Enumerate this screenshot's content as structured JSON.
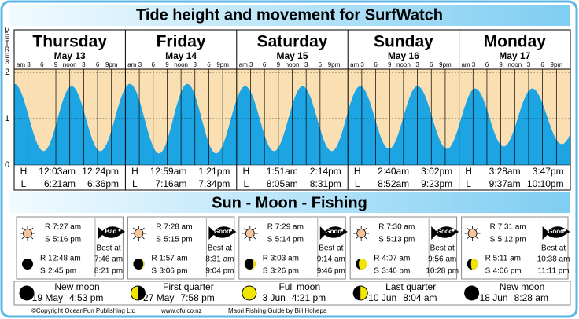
{
  "title": "Tide height and movement for SurfWatch",
  "axis_label": "METRES",
  "ylim": [
    0,
    2
  ],
  "yticks": [
    0,
    1,
    2
  ],
  "hour_labels": [
    "am 3",
    "6",
    "9",
    "noon",
    "3",
    "6",
    "9pm"
  ],
  "high_label": "H",
  "low_label": "L",
  "section_title": "Sun - Moon - Fishing",
  "rise_label": "R",
  "set_label": "S",
  "best_label": "Best at",
  "days": [
    {
      "name": "Thursday",
      "date": "May 13",
      "high": [
        "12:03am",
        "12:24pm"
      ],
      "low": [
        "6:21am",
        "6:36pm"
      ],
      "high_m": [
        1.75,
        1.7
      ],
      "low_m": [
        0.3,
        0.3
      ],
      "sun_rise": "7:27 am",
      "sun_set": "5:16 pm",
      "rating": "Bad",
      "moon_rise": "12:48 am",
      "moon_set": "2:45 pm",
      "best": [
        "7:46 am",
        "8:21 pm"
      ]
    },
    {
      "name": "Friday",
      "date": "May 14",
      "high": [
        "12:59am",
        "1:21pm"
      ],
      "low": [
        "7:16am",
        "7:34pm"
      ],
      "high_m": [
        1.75,
        1.75
      ],
      "low_m": [
        0.25,
        0.25
      ],
      "sun_rise": "7:28 am",
      "sun_set": "5:15 pm",
      "rating": "Good",
      "moon_rise": "1:57 am",
      "moon_set": "3:06 pm",
      "best": [
        "8:31 am",
        "9:04 pm"
      ]
    },
    {
      "name": "Saturday",
      "date": "May 15",
      "high": [
        "1:51am",
        "2:14pm"
      ],
      "low": [
        "8:05am",
        "8:31pm"
      ],
      "high_m": [
        1.7,
        1.7
      ],
      "low_m": [
        0.3,
        0.3
      ],
      "sun_rise": "7:29 am",
      "sun_set": "5:14 pm",
      "rating": "Good",
      "moon_rise": "3:03 am",
      "moon_set": "3:26 pm",
      "best": [
        "9:14 am",
        "9:46 pm"
      ]
    },
    {
      "name": "Sunday",
      "date": "May 16",
      "high": [
        "2:40am",
        "3:02pm"
      ],
      "low": [
        "8:52am",
        "9:23pm"
      ],
      "high_m": [
        1.7,
        1.7
      ],
      "low_m": [
        0.35,
        0.35
      ],
      "sun_rise": "7:30 am",
      "sun_set": "5:13 pm",
      "rating": "Good",
      "moon_rise": "4:07 am",
      "moon_set": "3:46 pm",
      "best": [
        "9:56 am",
        "10:28 pm"
      ]
    },
    {
      "name": "Monday",
      "date": "May 17",
      "high": [
        "3:28am",
        "3:47pm"
      ],
      "low": [
        "9:37am",
        "10:10pm"
      ],
      "high_m": [
        1.65,
        1.65
      ],
      "low_m": [
        0.4,
        0.45
      ],
      "sun_rise": "7:31 am",
      "sun_set": "5:12 pm",
      "rating": "Good",
      "moon_rise": "5:11 am",
      "moon_set": "4:06 pm",
      "best": [
        "10:38 am",
        "11:11 pm"
      ]
    }
  ],
  "phases": [
    {
      "name": "New moon",
      "date": "19 May",
      "time": "4:53 pm"
    },
    {
      "name": "First quarter",
      "date": "27 May",
      "time": "7:58 pm"
    },
    {
      "name": "Full moon",
      "date": "3 Jun",
      "time": "4:21 pm"
    },
    {
      "name": "Last quarter",
      "date": "10 Jun",
      "time": "8:04 am"
    },
    {
      "name": "New moon",
      "date": "18 Jun",
      "time": "8:28 am"
    }
  ],
  "footer": [
    "©Copyright OceanFun Publishing Ltd",
    "www.ofu.co.nz",
    "Maori Fishing Guide by Bill Hohepa"
  ]
}
